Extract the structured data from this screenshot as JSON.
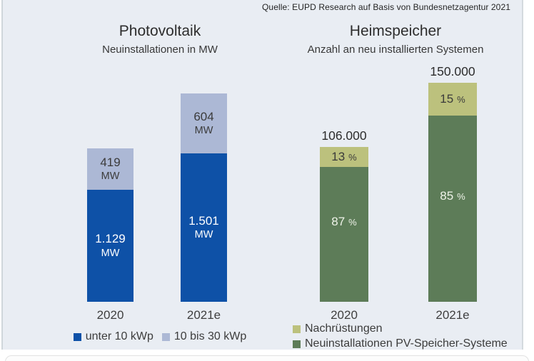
{
  "source": "Quelle: EUPD Research auf Basis von Bundesnetzagentur 2021",
  "colors": {
    "background": "#e9edf3",
    "dark_blue": "#0e51a7",
    "light_blue": "#acb8d5",
    "dark_green": "#5d7c58",
    "light_olive": "#bcc17d",
    "text_dark": "#3b3b3b",
    "text_white": "#ffffff"
  },
  "chart_data": [
    {
      "type": "bar",
      "stacked": true,
      "title": "Photovoltaik",
      "subtitle": "Neuinstallationen in MW",
      "categories": [
        "2020",
        "2021e"
      ],
      "legend": {
        "position": "bottom-center",
        "items": [
          {
            "label": "unter 10 kWp",
            "color": "#0e51a7"
          },
          {
            "label": "10 bis 30 kWp",
            "color": "#acb8d5"
          }
        ]
      },
      "bars": [
        {
          "category": "2020",
          "segments": [
            {
              "series": "10 bis 30 kWp",
              "value": 419,
              "color": "#acb8d5",
              "text_color": "#3b3b3b",
              "label_lines": [
                "419",
                "MW"
              ]
            },
            {
              "series": "unter 10 kWp",
              "value": 1129,
              "color": "#0e51a7",
              "text_color": "#ffffff",
              "label_lines": [
                "1.129",
                "MW"
              ]
            }
          ]
        },
        {
          "category": "2021e",
          "segments": [
            {
              "series": "10 bis 30 kWp",
              "value": 604,
              "color": "#acb8d5",
              "text_color": "#3b3b3b",
              "label_lines": [
                "604",
                "MW"
              ]
            },
            {
              "series": "unter 10 kWp",
              "value": 1501,
              "color": "#0e51a7",
              "text_color": "#ffffff",
              "label_lines": [
                "1.501",
                "MW"
              ]
            }
          ]
        }
      ]
    },
    {
      "type": "bar",
      "stacked": true,
      "title": "Heimspeicher",
      "subtitle": "Anzahl an neu installierten Systemen",
      "categories": [
        "2020",
        "2021e"
      ],
      "legend": {
        "position": "bottom-left",
        "items": [
          {
            "label": "Nachrüstungen",
            "color": "#bcc17d"
          },
          {
            "label": "Neuinstallationen PV-Speicher-Systeme",
            "color": "#5d7c58"
          }
        ]
      },
      "bars": [
        {
          "category": "2020",
          "total_label": "106.000",
          "total_value": 106000,
          "segments": [
            {
              "series": "Nachrüstungen",
              "percent": 13,
              "color": "#bcc17d",
              "text_color": "#3b3b3b",
              "label_lines": [
                "13 %"
              ]
            },
            {
              "series": "Neuinstallationen PV-Speicher-Systeme",
              "percent": 87,
              "color": "#5d7c58",
              "text_color": "#eef2e8",
              "label_lines": [
                "87 %"
              ]
            }
          ]
        },
        {
          "category": "2021e",
          "total_label": "150.000",
          "total_value": 150000,
          "segments": [
            {
              "series": "Nachrüstungen",
              "percent": 15,
              "color": "#bcc17d",
              "text_color": "#3b3b3b",
              "label_lines": [
                "15 %"
              ]
            },
            {
              "series": "Neuinstallationen PV-Speicher-Systeme",
              "percent": 85,
              "color": "#5d7c58",
              "text_color": "#eef2e8",
              "label_lines": [
                "85 %"
              ]
            }
          ]
        }
      ]
    }
  ]
}
